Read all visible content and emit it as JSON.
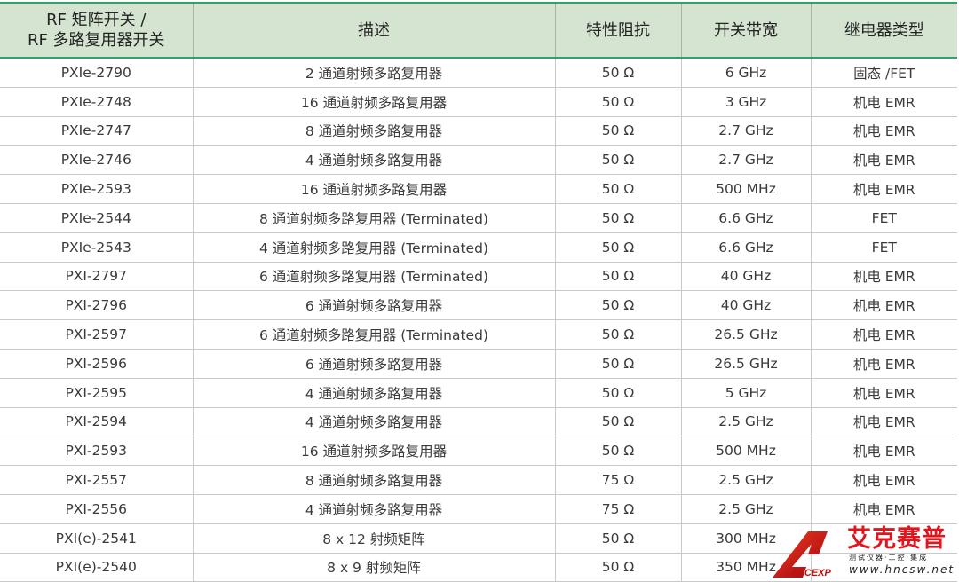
{
  "table": {
    "headers": [
      "RF 矩阵开关 /\nRF 多路复用器开关",
      "描述",
      "特性阻抗",
      "开关带宽",
      "继电器类型"
    ],
    "header_lines": [
      "RF 矩阵开关 /",
      "RF 多路复用器开关"
    ],
    "rows": [
      [
        "PXIe-2790",
        "2 通道射频多路复用器",
        "50 Ω",
        "6 GHz",
        "固态 /FET"
      ],
      [
        "PXIe-2748",
        "16 通道射频多路复用器",
        "50 Ω",
        "3 GHz",
        "机电 EMR"
      ],
      [
        "PXIe-2747",
        "8 通道射频多路复用器",
        "50 Ω",
        "2.7 GHz",
        "机电 EMR"
      ],
      [
        "PXIe-2746",
        "4 通道射频多路复用器",
        "50 Ω",
        "2.7 GHz",
        "机电 EMR"
      ],
      [
        "PXIe-2593",
        "16 通道射频多路复用器",
        "50 Ω",
        "500 MHz",
        "机电 EMR"
      ],
      [
        "PXIe-2544",
        "8 通道射频多路复用器 (Terminated)",
        "50 Ω",
        "6.6 GHz",
        "FET"
      ],
      [
        "PXIe-2543",
        "4 通道射频多路复用器 (Terminated)",
        "50 Ω",
        "6.6 GHz",
        "FET"
      ],
      [
        "PXI-2797",
        "6 通道射频多路复用器 (Terminated)",
        "50 Ω",
        "40 GHz",
        "机电 EMR"
      ],
      [
        "PXI-2796",
        "6 通道射频多路复用器",
        "50 Ω",
        "40 GHz",
        "机电 EMR"
      ],
      [
        "PXI-2597",
        "6 通道射频多路复用器 (Terminated)",
        "50 Ω",
        "26.5 GHz",
        "机电 EMR"
      ],
      [
        "PXI-2596",
        "6 通道射频多路复用器",
        "50 Ω",
        "26.5 GHz",
        "机电 EMR"
      ],
      [
        "PXI-2595",
        "4 通道射频多路复用器",
        "50 Ω",
        "5 GHz",
        "机电 EMR"
      ],
      [
        "PXI-2594",
        "4 通道射频多路复用器",
        "50 Ω",
        "2.5 GHz",
        "机电 EMR"
      ],
      [
        "PXI-2593",
        "16 通道射频多路复用器",
        "50 Ω",
        "500 MHz",
        "机电 EMR"
      ],
      [
        "PXI-2557",
        "8 通道射频多路复用器",
        "75 Ω",
        "2.5 GHz",
        "机电 EMR"
      ],
      [
        "PXI-2556",
        "4 通道射频多路复用器",
        "75 Ω",
        "2.5 GHz",
        "机电 EMR"
      ],
      [
        "PXI(e)-2541",
        "8 x 12 射频矩阵",
        "50 Ω",
        "300 MHz",
        ""
      ],
      [
        "PXI(e)-2540",
        "8 x 9 射频矩阵",
        "50 Ω",
        "350 MHz",
        ""
      ]
    ]
  },
  "watermark": {
    "logo": "ACCEXP",
    "name": "艾克赛普",
    "tagline": "测试仪器·工控·集成",
    "url": "www.hncsw.net"
  },
  "colors": {
    "header_bg": "#d5e4d0",
    "accent": "#2aa56a",
    "watermark_red": "#e0161e"
  }
}
